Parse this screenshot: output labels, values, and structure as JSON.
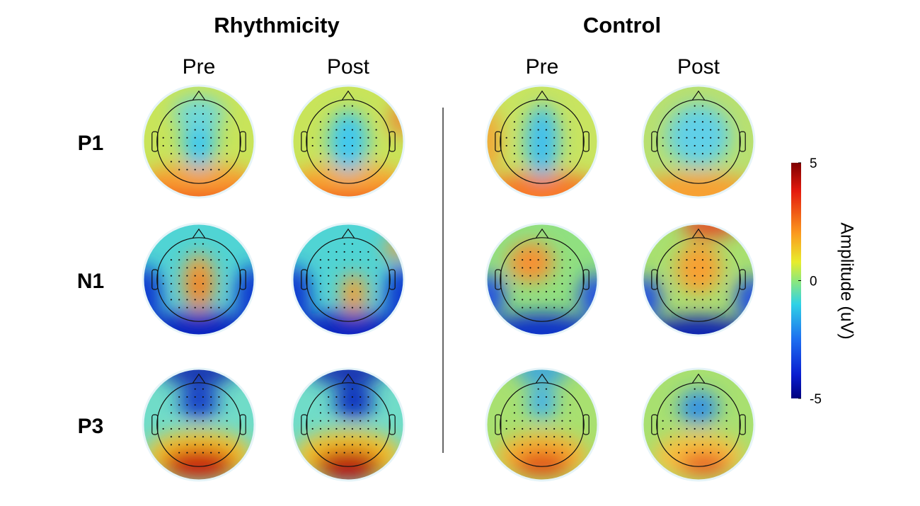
{
  "figure": {
    "groups": [
      {
        "title": "Rhythmicity",
        "columns": [
          "Pre",
          "Post"
        ]
      },
      {
        "title": "Control",
        "columns": [
          "Pre",
          "Post"
        ]
      }
    ],
    "rows": [
      "P1",
      "N1",
      "P3"
    ],
    "colorbar": {
      "label": "Amplitude (uV)",
      "lim": [
        -5,
        5
      ],
      "ticks": [
        5,
        0,
        -5
      ]
    }
  }
}
